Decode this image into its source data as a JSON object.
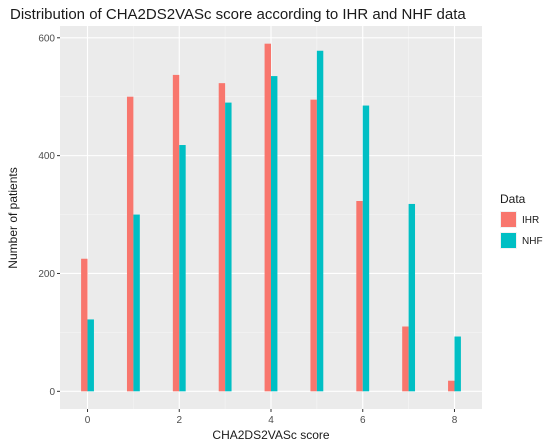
{
  "chart_data": {
    "type": "bar",
    "title": "Distribution of CHA2DS2VASc score according to IHR and NHF data",
    "xlabel": "CHA2DS2VASc score",
    "ylabel": "Number of patients",
    "x": [
      0,
      1,
      2,
      3,
      4,
      5,
      6,
      7,
      8
    ],
    "x_ticks": [
      0,
      2,
      4,
      6,
      8
    ],
    "xlim": [
      -0.6,
      8.6
    ],
    "y_ticks": [
      0,
      200,
      400,
      600
    ],
    "ylim": [
      -30,
      620
    ],
    "grid": true,
    "legend": {
      "title": "Data",
      "position": "right"
    },
    "series": [
      {
        "name": "IHR",
        "color": "#F8766D",
        "values": [
          225,
          500,
          537,
          523,
          590,
          495,
          323,
          110,
          18
        ]
      },
      {
        "name": "NHF",
        "color": "#00BFC4",
        "values": [
          122,
          300,
          418,
          490,
          535,
          578,
          485,
          318,
          93
        ]
      }
    ]
  }
}
